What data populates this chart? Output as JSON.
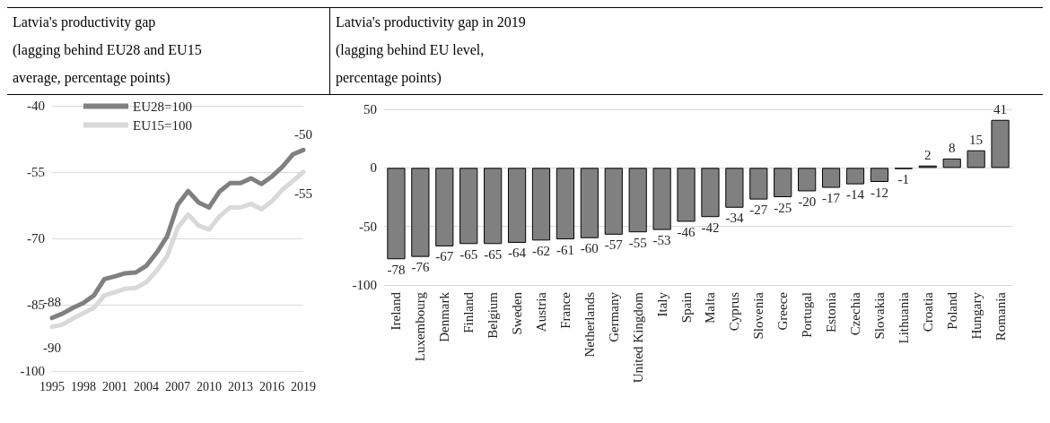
{
  "chart_data": [
    {
      "type": "line",
      "title": "Latvia's productivity gap",
      "subtitle": "(lagging behind EU28 and EU15 average, percentage points)",
      "categories": [
        "1995",
        null,
        null,
        "1998",
        null,
        null,
        "2001",
        null,
        null,
        "2004",
        null,
        null,
        "2007",
        null,
        null,
        "2010",
        null,
        null,
        "2013",
        null,
        null,
        "2016",
        null,
        null,
        "2019"
      ],
      "series": [
        {
          "name": "EU28=100",
          "color": "#808080",
          "values": [
            -88,
            -87,
            -85.7,
            -84.6,
            -82.9,
            -79.2,
            -78.6,
            -77.9,
            -77.7,
            -76.2,
            -73.2,
            -69.5,
            -62.4,
            -59.3,
            -61.9,
            -63,
            -59.4,
            -57.5,
            -57.5,
            -56.4,
            -57.7,
            -56,
            -53.8,
            -51,
            -50
          ],
          "value_labels": [
            "-88",
            null,
            null,
            null,
            null,
            null,
            null,
            null,
            null,
            null,
            null,
            null,
            null,
            null,
            null,
            null,
            null,
            null,
            null,
            null,
            null,
            null,
            null,
            null,
            "-50"
          ]
        },
        {
          "name": "EU15=100",
          "color": "#d9d9d9",
          "values": [
            -90,
            -89.5,
            -88.1,
            -86.9,
            -85.7,
            -82.9,
            -82.2,
            -81.4,
            -81.2,
            -79.9,
            -77.3,
            -74,
            -67.6,
            -64.6,
            -67.1,
            -68,
            -65,
            -63,
            -63,
            -62.2,
            -63.4,
            -61.6,
            -59,
            -57,
            -55
          ],
          "value_labels": [
            "-90",
            null,
            null,
            null,
            null,
            null,
            null,
            null,
            null,
            null,
            null,
            null,
            null,
            null,
            null,
            null,
            null,
            null,
            null,
            null,
            null,
            null,
            null,
            null,
            "-55"
          ]
        }
      ],
      "ylim": [
        -100,
        -40
      ],
      "yticks": [
        -100,
        -85,
        -70,
        -55,
        -40
      ],
      "grid": "y",
      "legend": "top",
      "marker": "none",
      "line_style": "solid"
    },
    {
      "type": "bar",
      "title": "Latvia's productivity gap in 2019",
      "subtitle": "(lagging behind EU level, percentage points)",
      "categories": [
        "Ireland",
        "Luxembourg",
        "Denmark",
        "Finland",
        "Belgium",
        "Sweden",
        "Austria",
        "France",
        "Netherlands",
        "Germany",
        "United Kingdom",
        "Italy",
        "Spain",
        "Malta",
        "Cyprus",
        "Slovenia",
        "Greece",
        "Portugal",
        "Estonia",
        "Czechia",
        "Slovakia",
        "Lithuania",
        "Croatia",
        "Poland",
        "Hungary",
        "Romania"
      ],
      "values": [
        -78,
        -76,
        -67,
        -65,
        -65,
        -64,
        -62,
        -61,
        -60,
        -57,
        -55,
        -53,
        -46,
        -42,
        -34,
        -27,
        -25,
        -20,
        -17,
        -14,
        -12,
        -1,
        2,
        8,
        15,
        41
      ],
      "color": "#808080",
      "ylim": [
        -100,
        50
      ],
      "yticks": [
        -100,
        -50,
        0,
        50
      ],
      "grid": "y",
      "data_labels": true
    }
  ]
}
